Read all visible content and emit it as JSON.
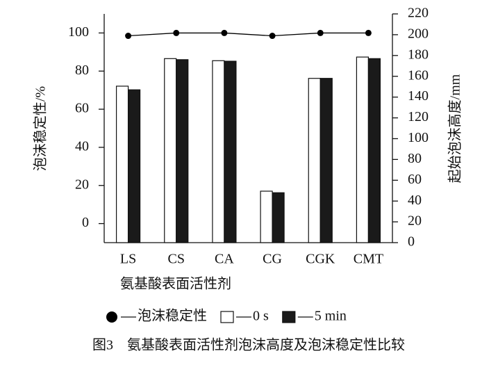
{
  "chart_data": {
    "type": "bar-line",
    "caption": "图3　氨基酸表面活性剂泡沫高度及泡沫稳定性比较",
    "xlabel": "氨基酸表面活性剂",
    "ylabel": "泡沫稳定性/%",
    "y2label": "起始泡沫高度/mm",
    "categories": [
      "LS",
      "CS",
      "CA",
      "CG",
      "CGK",
      "CMT"
    ],
    "ylim": [
      -10,
      110
    ],
    "yticks": [
      0,
      20,
      40,
      60,
      80,
      100
    ],
    "y2lim": [
      0,
      220
    ],
    "y2ticks": [
      0,
      20,
      40,
      60,
      80,
      100,
      120,
      140,
      160,
      180,
      200,
      220
    ],
    "series": [
      {
        "name": "泡沫稳定性",
        "type": "line",
        "color": "#000000",
        "values": [
          98.5,
          100,
          100,
          98.5,
          100,
          100
        ]
      },
      {
        "name": "0 s",
        "type": "bar",
        "axis": "y2",
        "color": "#ffffff",
        "values": [
          150.5,
          177,
          175,
          49.5,
          158,
          178.5
        ]
      },
      {
        "name": "5 min",
        "type": "bar",
        "axis": "y2",
        "color": "#1a1a1a",
        "values": [
          147,
          176,
          174.5,
          48,
          158,
          177
        ]
      }
    ]
  }
}
